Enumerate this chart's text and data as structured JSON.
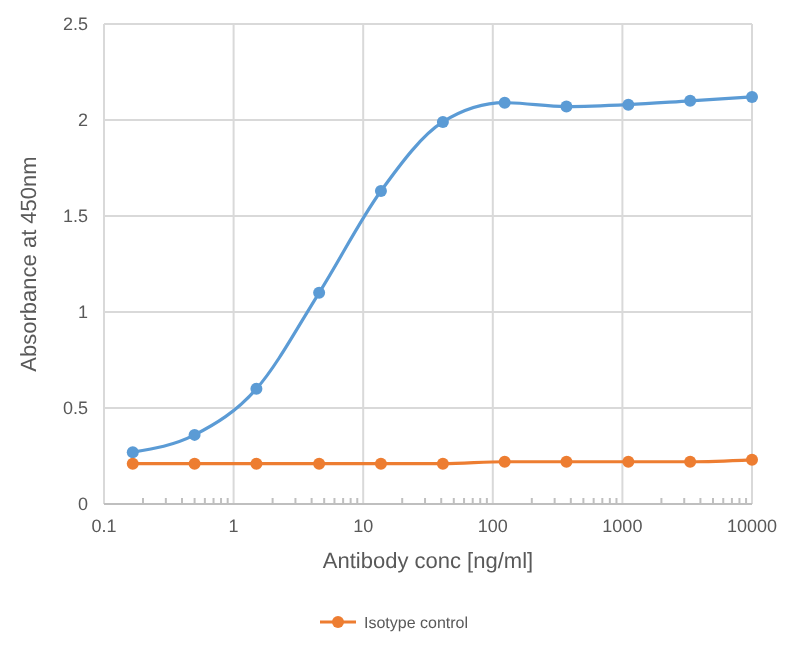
{
  "chart_data": {
    "type": "line",
    "xlabel": "Antibody conc [ng/ml]",
    "ylabel": "Absorbance at 450nm",
    "log": "x",
    "x": [
      0.1667,
      0.5,
      1.5,
      4.57,
      13.7,
      41.2,
      123.5,
      370,
      1111,
      3333,
      10000
    ],
    "xlim": [
      0.1,
      10000
    ],
    "xticks": [
      0.1,
      1,
      10,
      100,
      1000,
      10000
    ],
    "ylim": [
      0,
      2.5
    ],
    "yticks": [
      0,
      0.5,
      1,
      1.5,
      2,
      2.5
    ],
    "grid": true,
    "legend": "bottom",
    "marker": "circle",
    "line_style": "solid",
    "series": [
      {
        "color": "#5b9bd5",
        "values": [
          0.27,
          0.36,
          0.6,
          1.1,
          1.63,
          1.99,
          2.09,
          2.07,
          2.08,
          2.1,
          2.12
        ]
      },
      {
        "name": "Isotype control",
        "color": "#ed7d31",
        "values": [
          0.21,
          0.21,
          0.21,
          0.21,
          0.21,
          0.21,
          0.22,
          0.22,
          0.22,
          0.22,
          0.23
        ]
      }
    ]
  }
}
